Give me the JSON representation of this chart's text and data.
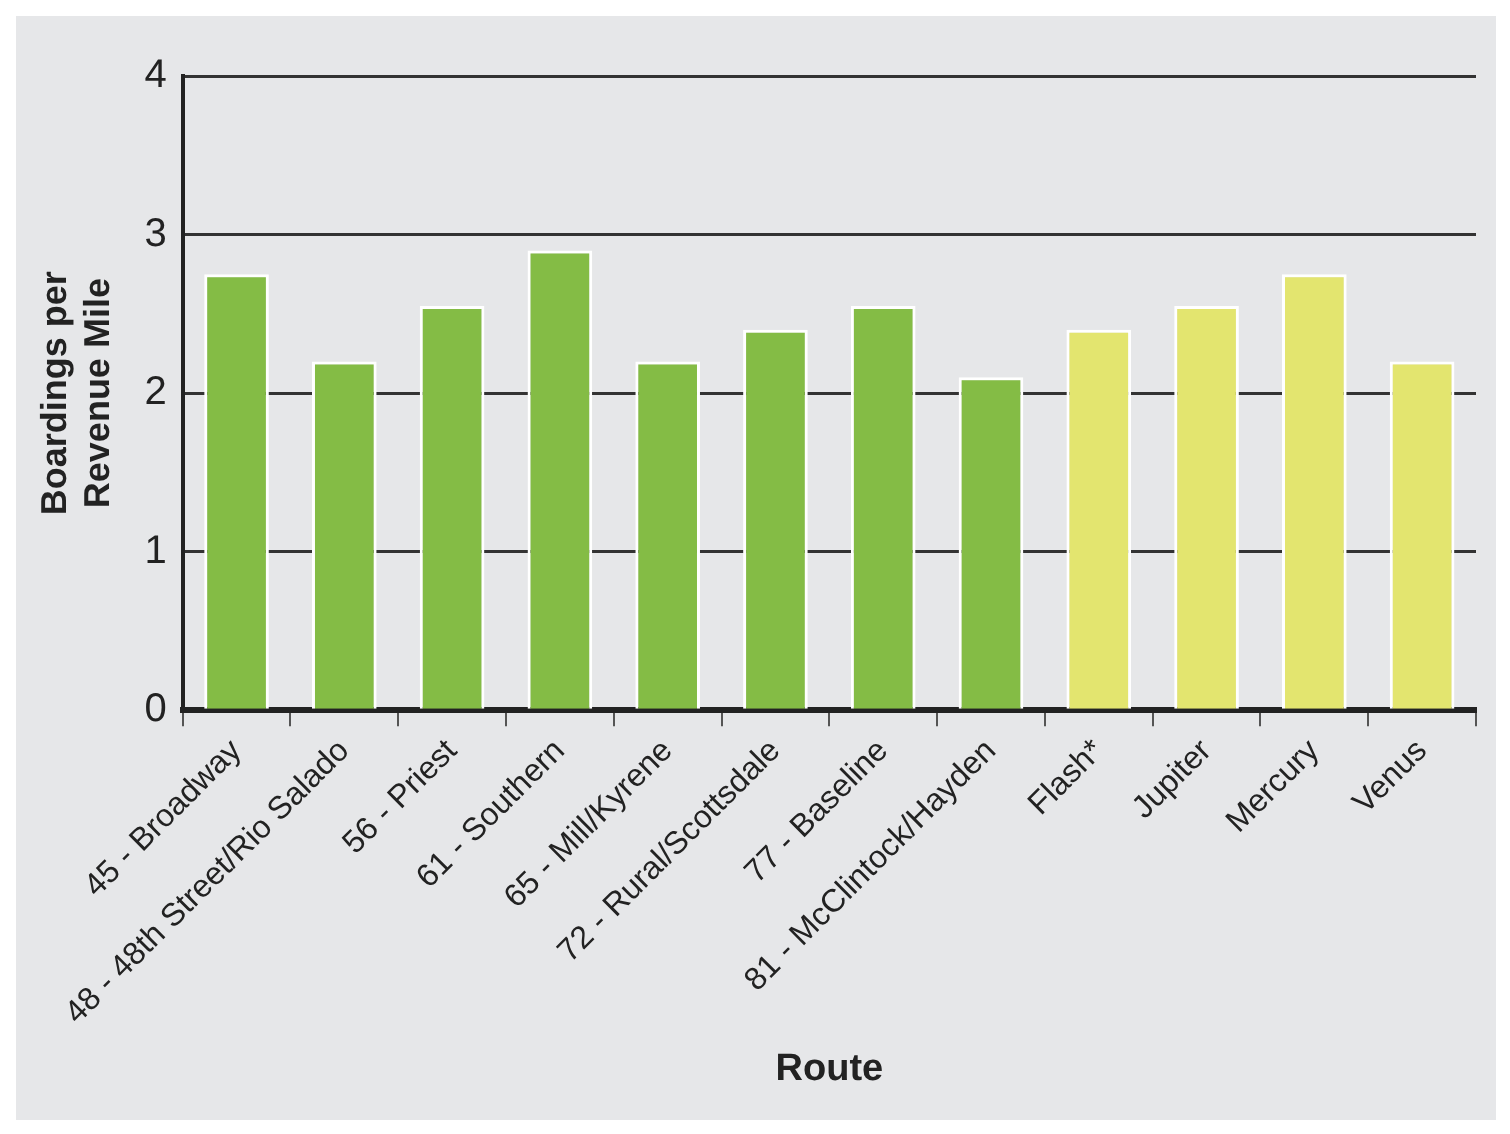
{
  "chart_data": {
    "type": "bar",
    "xlabel": "Route",
    "ylabel": "Boardings per Revenue Mile",
    "categories": [
      "45 - Broadway",
      "48 - 48th Street/Rio Salado",
      "56 - Priest",
      "61 - Southern",
      "65 - Mill/Kyrene",
      "72 - Rural/Scottsdale",
      "77 - Baseline",
      "81 - McClintock/Hayden",
      "Flash*",
      "Jupiter",
      "Mercury",
      "Venus"
    ],
    "values": [
      2.75,
      2.2,
      2.55,
      2.9,
      2.2,
      2.4,
      2.55,
      2.1,
      2.4,
      2.55,
      2.75,
      2.2
    ],
    "colors": [
      "#84bc45",
      "#84bc45",
      "#84bc45",
      "#84bc45",
      "#84bc45",
      "#84bc45",
      "#84bc45",
      "#84bc45",
      "#e3e56f",
      "#e3e56f",
      "#e3e56f",
      "#e3e56f"
    ],
    "ylim": [
      0,
      4
    ],
    "yticks": [
      0,
      1,
      2,
      3,
      4
    ],
    "grid": "y",
    "legend": false
  }
}
